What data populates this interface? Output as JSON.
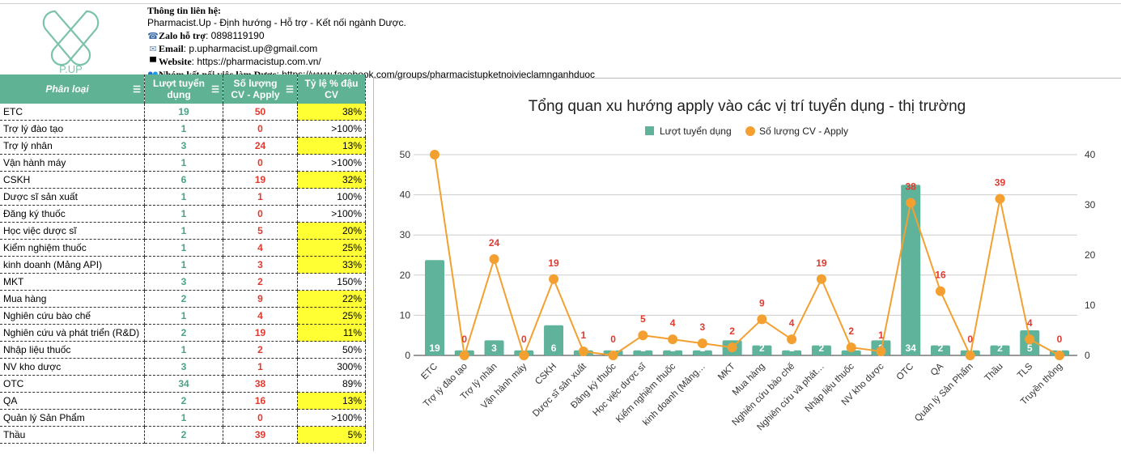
{
  "logo": {
    "text": "P.UP"
  },
  "contact": {
    "heading": "Thông tin liên hệ:",
    "tagline": "Pharmacist.Up - Định hướng - Hỗ trợ - Kết nối ngành Dược.",
    "zalo_label": "Zalo hỗ trợ",
    "zalo_value": ": 0898119190",
    "email_label": "Email",
    "email_value": ": p.upharmacist.up@gmail.com",
    "website_label": "Website",
    "website_value": ": https://pharmacistup.com.vn/",
    "group_label": "Nhóm kết nối việc làm Dược",
    "group_value": ": https://www.facebook.com/groups/pharmacistupketnoivieclamnganhduoc"
  },
  "table": {
    "headers": [
      "Phân loại",
      "Lượt tuyển dụng",
      "Số lượng CV - Apply",
      "Tỷ lệ % đậu CV"
    ],
    "rows": [
      {
        "name": " ETC",
        "a": "19",
        "b": "50",
        "c": "38%",
        "hl": true
      },
      {
        "name": " Trợ lý đào tạo",
        "a": "1",
        "b": "0",
        "c": ">100%",
        "hl": false
      },
      {
        "name": " Trợ lý nhân",
        "a": "3",
        "b": "24",
        "c": "13%",
        "hl": true
      },
      {
        "name": " Vận hành máy",
        "a": "1",
        "b": "0",
        "c": ">100%",
        "hl": false
      },
      {
        "name": "CSKH",
        "a": "6",
        "b": "19",
        "c": "32%",
        "hl": true
      },
      {
        "name": "Dược sĩ sản xuất",
        "a": "1",
        "b": "1",
        "c": "100%",
        "hl": false
      },
      {
        "name": "Đăng ký thuốc",
        "a": "1",
        "b": "0",
        "c": ">100%",
        "hl": false
      },
      {
        "name": "Học việc dược sĩ",
        "a": "1",
        "b": "5",
        "c": "20%",
        "hl": true
      },
      {
        "name": "Kiểm nghiệm thuốc",
        "a": "1",
        "b": "4",
        "c": "25%",
        "hl": true
      },
      {
        "name": "kinh doanh (Mảng API)",
        "a": "1",
        "b": "3",
        "c": "33%",
        "hl": true
      },
      {
        "name": "MKT",
        "a": "3",
        "b": "2",
        "c": "150%",
        "hl": false
      },
      {
        "name": "Mua hàng",
        "a": "2",
        "b": "9",
        "c": "22%",
        "hl": true
      },
      {
        "name": "Nghiên cứu bào chế",
        "a": "1",
        "b": "4",
        "c": "25%",
        "hl": true
      },
      {
        "name": "Nghiên cứu và phát triển (R&D)",
        "a": "2",
        "b": "19",
        "c": "11%",
        "hl": true
      },
      {
        "name": "Nhập liệu thuốc",
        "a": "1",
        "b": "2",
        "c": "50%",
        "hl": false
      },
      {
        "name": "NV kho dược",
        "a": "3",
        "b": "1",
        "c": "300%",
        "hl": false
      },
      {
        "name": "OTC",
        "a": "34",
        "b": "38",
        "c": "89%",
        "hl": false
      },
      {
        "name": "QA",
        "a": "2",
        "b": "16",
        "c": "13%",
        "hl": true
      },
      {
        "name": "Quản lý Sản Phẩm",
        "a": "1",
        "b": "0",
        "c": ">100%",
        "hl": false
      },
      {
        "name": "Thầu",
        "a": "2",
        "b": "39",
        "c": "5%",
        "hl": true
      }
    ]
  },
  "chart_data": {
    "type": "bar+line",
    "title": "Tổng quan xu hướng apply vào các vị trí tuyển dụng - thị trường",
    "legend_position": "top",
    "grid": true,
    "categories": [
      "ETC",
      "Trợ lý đào tạo",
      "Trợ lý nhân",
      "Vận hành máy",
      "CSKH",
      "Dược sĩ sản xuất",
      "Đăng ký thuốc",
      "Học việc dược sĩ",
      "Kiểm nghiệm thuốc",
      "kinh doanh (Mảng…",
      "MKT",
      "Mua hàng",
      "Nghiên cứu bào chế",
      "Nghiên cứu và phát…",
      "Nhập liệu thuốc",
      "NV kho dược",
      "OTC",
      "QA",
      "Quản lý Sản Phẩm",
      "Thầu",
      "TLS",
      "Truyền thông"
    ],
    "series": [
      {
        "name": "Lượt tuyển dụng",
        "type": "bar",
        "axis": "right",
        "color": "#5fb39a",
        "values": [
          19,
          1,
          3,
          1,
          6,
          1,
          1,
          1,
          1,
          1,
          3,
          2,
          1,
          2,
          1,
          3,
          34,
          2,
          1,
          2,
          5,
          1
        ]
      },
      {
        "name": "Số lượng CV - Apply",
        "type": "line",
        "axis": "left",
        "color": "#f4a030",
        "values": [
          50,
          0,
          24,
          0,
          19,
          1,
          0,
          5,
          4,
          3,
          2,
          9,
          4,
          19,
          2,
          1,
          38,
          16,
          0,
          39,
          4,
          0
        ]
      }
    ],
    "left_axis": {
      "range": [
        0,
        50
      ],
      "ticks": [
        "0",
        "10",
        "20",
        "30",
        "40",
        "50"
      ]
    },
    "right_axis": {
      "range": [
        0,
        40
      ],
      "ticks": [
        "0",
        "10",
        "20",
        "30",
        "40"
      ]
    },
    "label_color": "#e03a2f"
  }
}
